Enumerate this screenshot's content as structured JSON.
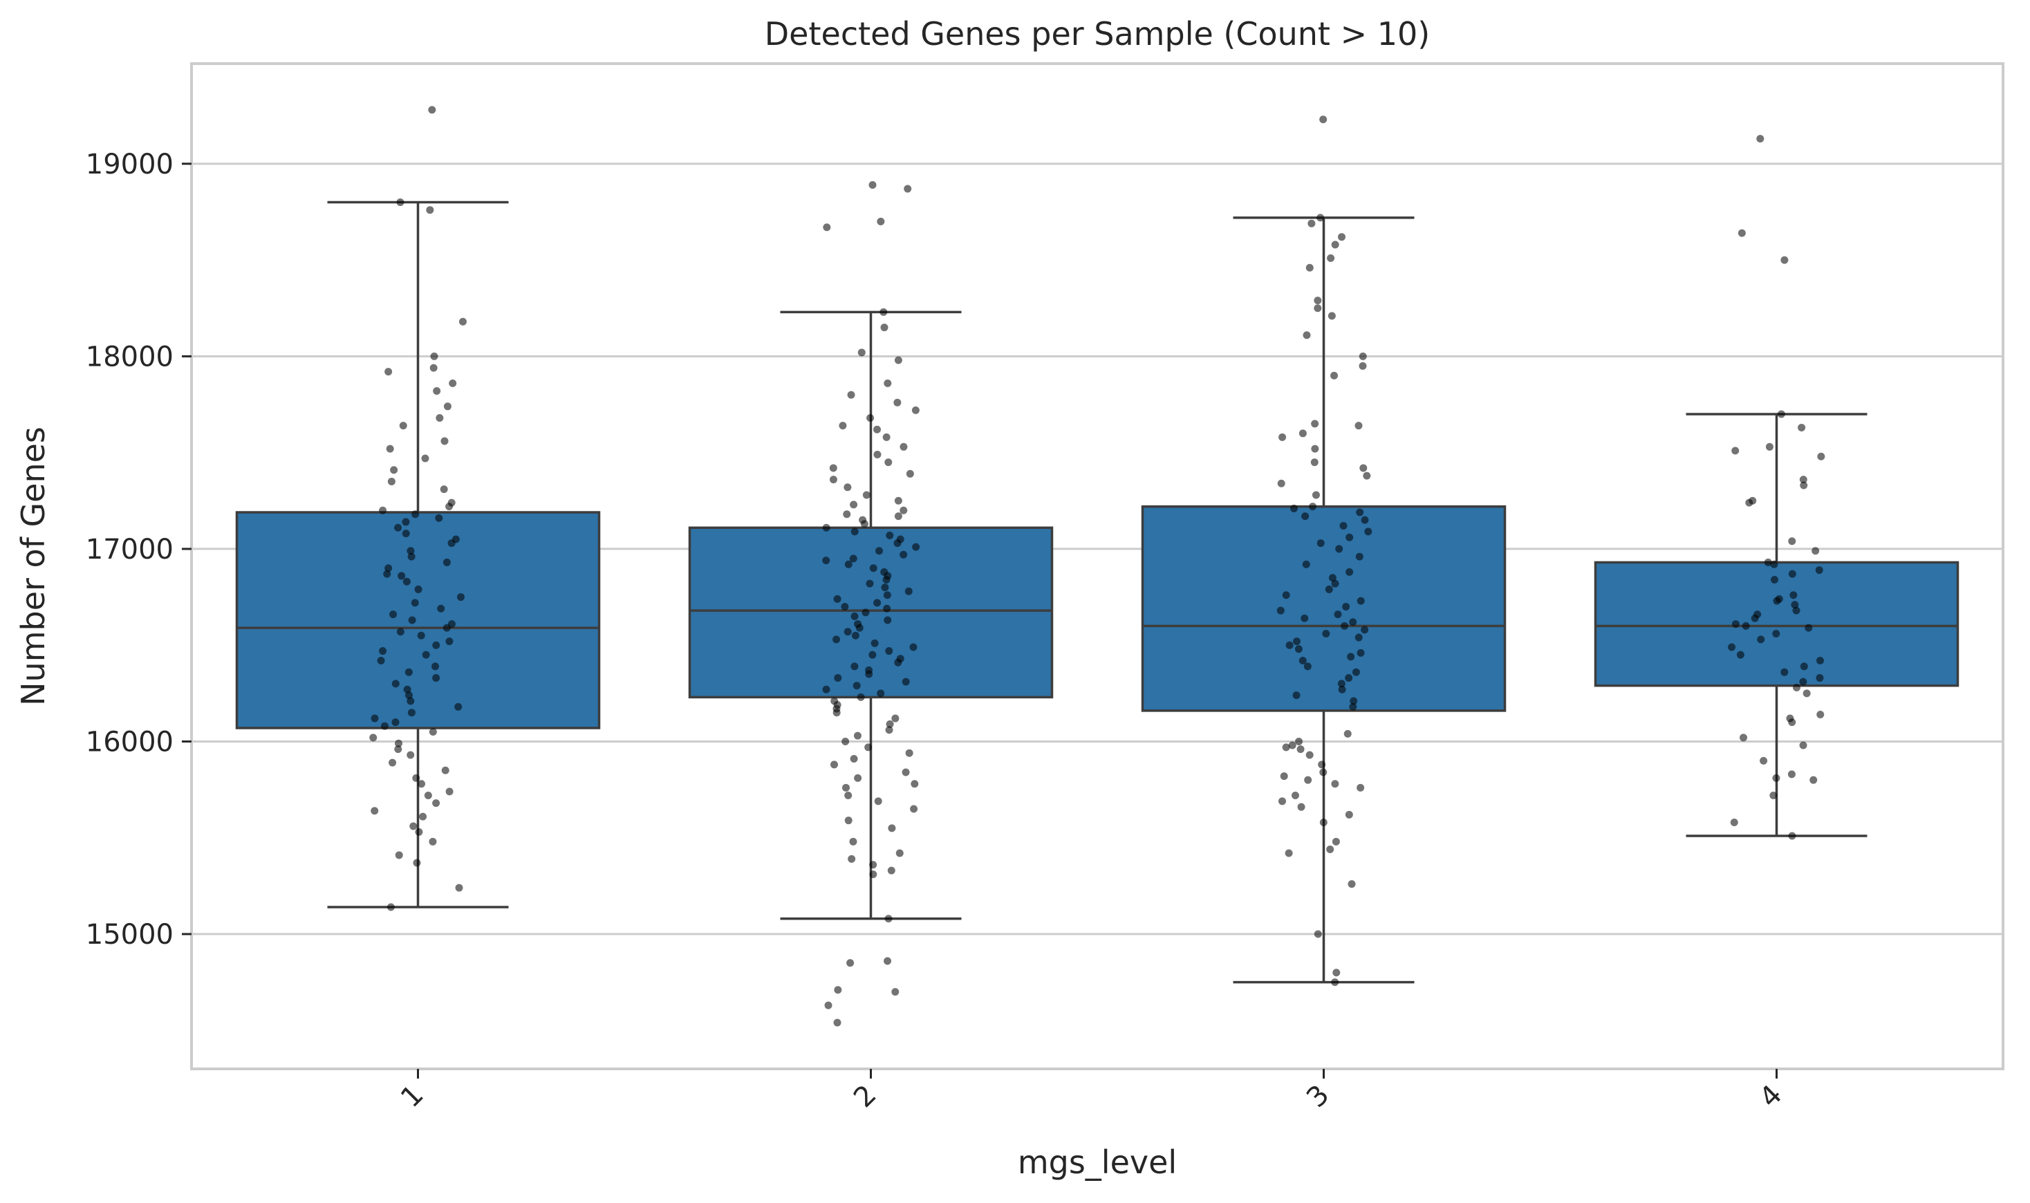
{
  "chart_data": {
    "type": "box",
    "title": "Detected Genes per Sample (Count > 10)",
    "xlabel": "mgs_level",
    "ylabel": "Number of Genes",
    "categories": [
      "1",
      "2",
      "3",
      "4"
    ],
    "ylim": [
      14300,
      19520
    ],
    "yticks": [
      15000,
      16000,
      17000,
      18000,
      19000
    ],
    "grid": "horizontal",
    "colors": {
      "box": "#2e72a6",
      "edge": "#3d3d3d",
      "point": "#000000",
      "grid": "#cccccc",
      "frame": "#cccccc"
    },
    "boxes": [
      {
        "category": "1",
        "whisker_low": 15140,
        "q1": 16070,
        "median": 16590,
        "q3": 17190,
        "whisker_high": 18800
      },
      {
        "category": "2",
        "whisker_low": 15080,
        "q1": 16230,
        "median": 16680,
        "q3": 17110,
        "whisker_high": 18230
      },
      {
        "category": "3",
        "whisker_low": 14750,
        "q1": 16160,
        "median": 16600,
        "q3": 17220,
        "whisker_high": 18720
      },
      {
        "category": "4",
        "whisker_low": 15510,
        "q1": 16290,
        "median": 16600,
        "q3": 16930,
        "whisker_high": 17700
      }
    ],
    "points": [
      {
        "category": "1",
        "values": [
          19280,
          18800,
          18760,
          18180,
          18000,
          17940,
          17920,
          17860,
          17820,
          17740,
          17680,
          17640,
          17560,
          17520,
          17470,
          17410,
          17350,
          17310,
          17240,
          17220,
          17200,
          17180,
          17160,
          17140,
          17110,
          17080,
          17050,
          17030,
          16990,
          16960,
          16930,
          16900,
          16870,
          16860,
          16830,
          16790,
          16750,
          16720,
          16690,
          16660,
          16630,
          16610,
          16590,
          16570,
          16550,
          16520,
          16500,
          16470,
          16450,
          16420,
          16390,
          16360,
          16330,
          16300,
          16270,
          16240,
          16210,
          16180,
          16150,
          16120,
          16100,
          16080,
          16050,
          16020,
          15990,
          15960,
          15930,
          15890,
          15850,
          15810,
          15780,
          15740,
          15720,
          15680,
          15640,
          15610,
          15560,
          15530,
          15480,
          15410,
          15370,
          15240,
          15140
        ]
      },
      {
        "category": "2",
        "values": [
          18890,
          18870,
          18700,
          18670,
          18230,
          18150,
          18020,
          17980,
          17860,
          17800,
          17760,
          17720,
          17680,
          17640,
          17620,
          17580,
          17530,
          17490,
          17450,
          17420,
          17390,
          17360,
          17320,
          17280,
          17250,
          17230,
          17200,
          17180,
          17170,
          17150,
          17130,
          17110,
          17090,
          17070,
          17050,
          17030,
          17010,
          16990,
          16970,
          16950,
          16940,
          16920,
          16900,
          16880,
          16860,
          16840,
          16820,
          16800,
          16780,
          16760,
          16740,
          16720,
          16700,
          16690,
          16670,
          16650,
          16630,
          16610,
          16590,
          16570,
          16550,
          16530,
          16510,
          16490,
          16470,
          16450,
          16430,
          16410,
          16390,
          16370,
          16350,
          16330,
          16310,
          16290,
          16270,
          16250,
          16230,
          16210,
          16190,
          16170,
          16150,
          16120,
          16090,
          16060,
          16030,
          16000,
          15970,
          15940,
          15910,
          15880,
          15840,
          15810,
          15780,
          15760,
          15720,
          15690,
          15650,
          15590,
          15550,
          15480,
          15420,
          15390,
          15360,
          15330,
          15310,
          15080,
          14860,
          14850,
          14710,
          14700,
          14630,
          14540
        ]
      },
      {
        "category": "3",
        "values": [
          19230,
          18720,
          18690,
          18620,
          18580,
          18510,
          18460,
          18290,
          18250,
          18210,
          18110,
          18000,
          17950,
          17900,
          17650,
          17640,
          17600,
          17580,
          17520,
          17450,
          17420,
          17380,
          17340,
          17280,
          17220,
          17210,
          17190,
          17170,
          17150,
          17120,
          17090,
          17060,
          17030,
          17000,
          16960,
          16920,
          16880,
          16850,
          16820,
          16790,
          16760,
          16730,
          16700,
          16680,
          16660,
          16640,
          16620,
          16600,
          16580,
          16560,
          16540,
          16520,
          16500,
          16480,
          16460,
          16440,
          16420,
          16390,
          16360,
          16330,
          16300,
          16270,
          16240,
          16210,
          16180,
          16040,
          16000,
          15980,
          15970,
          15960,
          15930,
          15880,
          15840,
          15820,
          15800,
          15780,
          15760,
          15720,
          15690,
          15660,
          15620,
          15580,
          15480,
          15440,
          15420,
          15260,
          15000,
          14800,
          14750
        ]
      },
      {
        "category": "4",
        "values": [
          19130,
          18640,
          18500,
          17700,
          17630,
          17530,
          17510,
          17480,
          17360,
          17330,
          17250,
          17240,
          17040,
          16990,
          16930,
          16920,
          16890,
          16870,
          16840,
          16760,
          16740,
          16730,
          16710,
          16680,
          16660,
          16640,
          16610,
          16600,
          16590,
          16560,
          16530,
          16490,
          16450,
          16420,
          16390,
          16360,
          16330,
          16310,
          16280,
          16250,
          16140,
          16120,
          16100,
          16020,
          15980,
          15900,
          15830,
          15810,
          15800,
          15720,
          15580,
          15510
        ]
      }
    ]
  }
}
